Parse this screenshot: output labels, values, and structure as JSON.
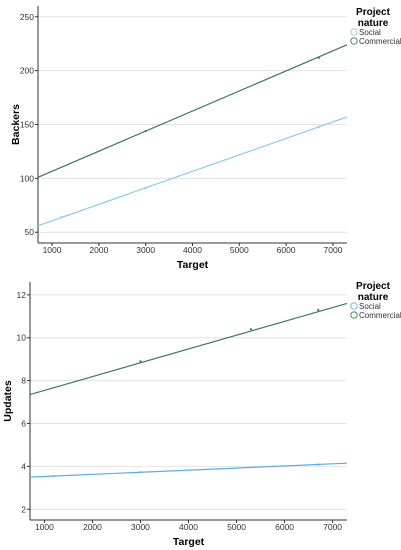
{
  "chart_data": [
    {
      "type": "line",
      "xlabel": "Target",
      "ylabel": "Backers",
      "xlim": [
        700,
        7300
      ],
      "ylim": [
        40,
        260
      ],
      "xticks": [
        1000,
        2000,
        3000,
        4000,
        5000,
        6000,
        7000
      ],
      "yticks": [
        50,
        100,
        150,
        200,
        250
      ],
      "grid": "horizontal",
      "legend": {
        "title": [
          "Project",
          "nature"
        ],
        "position": "right"
      },
      "series": [
        {
          "name": "Social",
          "color": "#88ccee",
          "x": [
            700,
            7300
          ],
          "y": [
            56,
            157
          ],
          "markers": {
            "x": [
              1200,
              3000,
              6700
            ],
            "y": [
              64,
              91,
              148
            ]
          }
        },
        {
          "name": "Commercial",
          "color": "#3a7a5e",
          "x": [
            700,
            7300
          ],
          "y": [
            101,
            224
          ],
          "markers": {
            "x": [
              3000,
              6700
            ],
            "y": [
              144,
              212
            ]
          }
        }
      ]
    },
    {
      "type": "line",
      "xlabel": "Target",
      "ylabel": "Updates",
      "xlim": [
        700,
        7300
      ],
      "ylim": [
        1.5,
        12.6
      ],
      "xticks": [
        1000,
        2000,
        3000,
        4000,
        5000,
        6000,
        7000
      ],
      "yticks": [
        2,
        4,
        6,
        8,
        10,
        12
      ],
      "grid": "horizontal",
      "legend": {
        "title": [
          "Project",
          "nature"
        ],
        "position": "right"
      },
      "series": [
        {
          "name": "Social",
          "color": "#5aaee0",
          "x": [
            700,
            7300
          ],
          "y": [
            3.5,
            4.15
          ],
          "markers": {
            "x": [
              1200,
              3000,
              6700
            ],
            "y": [
              3.55,
              3.73,
              4.09
            ]
          }
        },
        {
          "name": "Commercial",
          "color": "#3a7a5e",
          "x": [
            700,
            7300
          ],
          "y": [
            7.35,
            11.6
          ],
          "markers": {
            "x": [
              3000,
              5300,
              6700
            ],
            "y": [
              8.9,
              10.4,
              11.3
            ]
          }
        }
      ]
    }
  ]
}
